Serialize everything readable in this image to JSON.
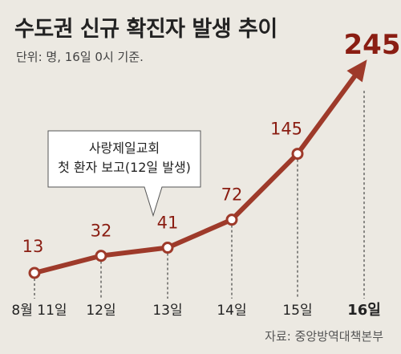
{
  "title": "수도권 신규 확진자 발생 추이",
  "subtitle": "단위: 명, 16일 0시 기준.",
  "source": "자료: 중앙방역대책본부",
  "chart_data": {
    "type": "line",
    "categories": [
      "8월 11일",
      "12일",
      "13일",
      "14일",
      "15일",
      "16일"
    ],
    "values": [
      13,
      32,
      41,
      72,
      145,
      245
    ],
    "highlight_index": 5,
    "annotation": {
      "lines": [
        "사랑제일교회",
        "첫 환자 보고(12일 발생)"
      ],
      "target_index": 2
    },
    "colors": {
      "line": "#9e3a2a",
      "value_label": "#8a1d12",
      "background": "#ece9e2"
    }
  }
}
